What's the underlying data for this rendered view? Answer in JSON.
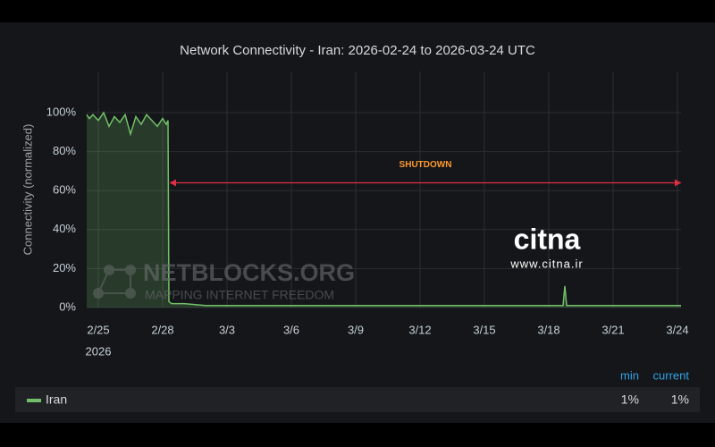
{
  "chart_data": {
    "type": "line",
    "title": "Network Connectivity - Iran: 2026-02-24 to 2026-03-24 UTC",
    "y_label": "Connectivity (normalized)",
    "x": [
      "2026-02-24T11:00",
      "2026-02-24T14:00",
      "2026-02-24T18:00",
      "2026-02-25T00:00",
      "2026-02-25T06:00",
      "2026-02-25T12:00",
      "2026-02-25T18:00",
      "2026-02-26T00:00",
      "2026-02-26T06:00",
      "2026-02-26T12:00",
      "2026-02-26T18:00",
      "2026-02-27T00:00",
      "2026-02-27T06:00",
      "2026-02-27T12:00",
      "2026-02-27T18:00",
      "2026-02-28T00:00",
      "2026-02-28T04:00",
      "2026-02-28T06:00",
      "2026-02-28T07:00",
      "2026-02-28T10:00",
      "2026-03-01T00:00",
      "2026-03-02T00:00",
      "2026-03-03T00:00",
      "2026-03-04T00:00",
      "2026-03-05T00:00",
      "2026-03-06T00:00",
      "2026-03-07T00:00",
      "2026-03-08T00:00",
      "2026-03-09T00:00",
      "2026-03-10T00:00",
      "2026-03-11T00:00",
      "2026-03-12T00:00",
      "2026-03-13T00:00",
      "2026-03-14T00:00",
      "2026-03-15T00:00",
      "2026-03-16T00:00",
      "2026-03-17T00:00",
      "2026-03-18T00:00",
      "2026-03-18T16:00",
      "2026-03-18T18:00",
      "2026-03-18T20:00",
      "2026-03-19T00:00",
      "2026-03-20T00:00",
      "2026-03-21T00:00",
      "2026-03-22T00:00",
      "2026-03-23T00:00",
      "2026-03-24T04:00"
    ],
    "series": [
      {
        "name": "Iran",
        "color": "#73bf69",
        "values": [
          99,
          97,
          99,
          96,
          100,
          93,
          98,
          95,
          99,
          89,
          98,
          94,
          99,
          96,
          93,
          97,
          94,
          96,
          3,
          2,
          2,
          1,
          1,
          1,
          1,
          1,
          1,
          1,
          1,
          1,
          1,
          1,
          1,
          1,
          1,
          1,
          1,
          1,
          1,
          11,
          1,
          1,
          1,
          1,
          1,
          1,
          1
        ]
      }
    ],
    "xlim": [
      "2026-02-24T11:00",
      "2026-03-24T04:00"
    ],
    "xticks": [
      {
        "value": "2026-02-25T00:00",
        "label": "2/25"
      },
      {
        "value": "2026-02-28T00:00",
        "label": "2/28"
      },
      {
        "value": "2026-03-03T00:00",
        "label": "3/3"
      },
      {
        "value": "2026-03-06T00:00",
        "label": "3/6"
      },
      {
        "value": "2026-03-09T00:00",
        "label": "3/9"
      },
      {
        "value": "2026-03-12T00:00",
        "label": "3/12"
      },
      {
        "value": "2026-03-15T00:00",
        "label": "3/15"
      },
      {
        "value": "2026-03-18T00:00",
        "label": "3/18"
      },
      {
        "value": "2026-03-21T00:00",
        "label": "3/21"
      },
      {
        "value": "2026-03-24T00:00",
        "label": "3/24"
      }
    ],
    "xtick_year": "2026",
    "ylim": [
      0,
      100
    ],
    "yticks": [
      {
        "value": 0,
        "label": "0%"
      },
      {
        "value": 20,
        "label": "20%"
      },
      {
        "value": 40,
        "label": "40%"
      },
      {
        "value": 60,
        "label": "60%"
      },
      {
        "value": 80,
        "label": "80%"
      },
      {
        "value": 100,
        "label": "100%"
      }
    ],
    "grid": true,
    "annotation": {
      "text": "SHUTDOWN",
      "x_start": "2026-02-28T08:00",
      "x_end": "2026-03-24T04:00",
      "y": 64,
      "color": "#e02f44",
      "text_color": "#ff9830"
    },
    "legend_stats": [
      {
        "name": "min",
        "value": 1,
        "label": "1%"
      },
      {
        "name": "current",
        "value": 1,
        "label": "1%"
      }
    ],
    "watermarks": {
      "netblocks": "NETBLOCKS.ORG",
      "netblocks_sub": "MAPPING INTERNET FREEDOM",
      "citna": "citna",
      "citna_url": "www.citna.ir"
    }
  }
}
